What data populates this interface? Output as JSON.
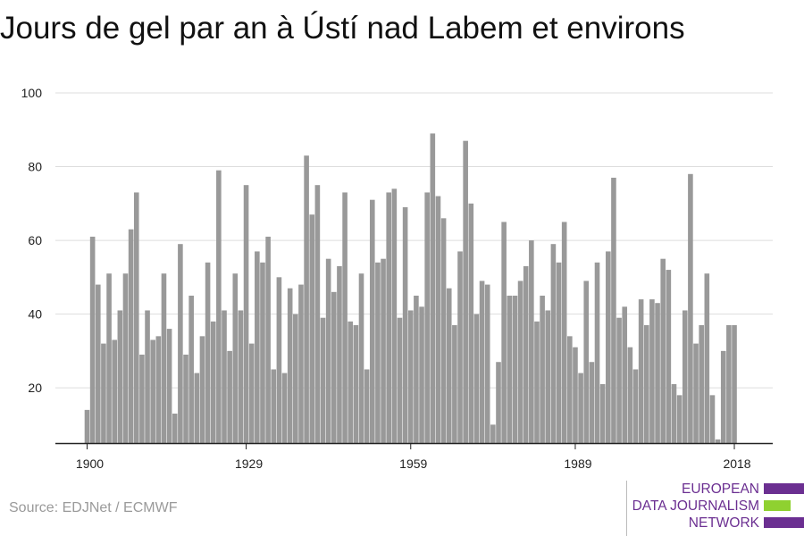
{
  "title": "Jours de gel par an à Ústí nad Labem et environs",
  "source": "Source: EDJNet / ECMWF",
  "logo": {
    "lines": [
      "EUROPEAN",
      "DATA JOURNALISM",
      "NETWORK"
    ],
    "colors": [
      "#6b2f91",
      "#8fd130",
      "#6b2f91"
    ]
  },
  "colors": {
    "bar": "#999999",
    "grid": "#dddddd",
    "axis": "#222222",
    "text": "#222222"
  },
  "chart_data": {
    "type": "bar",
    "title": "Jours de gel par an à Ústí nad Labem et environs",
    "xlabel": "",
    "ylabel": "",
    "x_ticks": [
      1900,
      1929,
      1959,
      1989,
      2018
    ],
    "y_ticks": [
      20,
      40,
      60,
      80,
      100
    ],
    "ylim": [
      5,
      100
    ],
    "grid": true,
    "categories": [
      1900,
      1901,
      1902,
      1903,
      1904,
      1905,
      1906,
      1907,
      1908,
      1909,
      1910,
      1911,
      1912,
      1913,
      1914,
      1915,
      1916,
      1917,
      1918,
      1919,
      1920,
      1921,
      1922,
      1923,
      1924,
      1925,
      1926,
      1927,
      1928,
      1929,
      1930,
      1931,
      1932,
      1933,
      1934,
      1935,
      1936,
      1937,
      1938,
      1939,
      1940,
      1941,
      1942,
      1943,
      1944,
      1945,
      1946,
      1947,
      1948,
      1949,
      1950,
      1951,
      1952,
      1953,
      1954,
      1955,
      1956,
      1957,
      1958,
      1959,
      1960,
      1961,
      1962,
      1963,
      1964,
      1965,
      1966,
      1967,
      1968,
      1969,
      1970,
      1971,
      1972,
      1973,
      1974,
      1975,
      1976,
      1977,
      1978,
      1979,
      1980,
      1981,
      1982,
      1983,
      1984,
      1985,
      1986,
      1987,
      1988,
      1989,
      1990,
      1991,
      1992,
      1993,
      1994,
      1995,
      1996,
      1997,
      1998,
      1999,
      2000,
      2001,
      2002,
      2003,
      2004,
      2005,
      2006,
      2007,
      2008,
      2009,
      2010,
      2011,
      2012,
      2013,
      2014,
      2015,
      2016,
      2017,
      2018
    ],
    "values": [
      14,
      61,
      48,
      32,
      51,
      33,
      41,
      51,
      63,
      73,
      29,
      41,
      33,
      34,
      51,
      36,
      13,
      59,
      29,
      45,
      24,
      34,
      54,
      38,
      79,
      41,
      30,
      51,
      41,
      75,
      32,
      57,
      54,
      61,
      25,
      50,
      24,
      47,
      40,
      48,
      83,
      67,
      75,
      39,
      55,
      46,
      53,
      73,
      38,
      37,
      51,
      25,
      71,
      54,
      55,
      73,
      74,
      39,
      69,
      41,
      45,
      42,
      73,
      89,
      72,
      66,
      47,
      37,
      57,
      87,
      70,
      40,
      49,
      48,
      10,
      27,
      65,
      45,
      45,
      49,
      53,
      60,
      38,
      45,
      41,
      59,
      54,
      65,
      34,
      31,
      24,
      49,
      27,
      54,
      21,
      57,
      77,
      39,
      42,
      31,
      25,
      44,
      37,
      44,
      43,
      55,
      52,
      21,
      18,
      41,
      78,
      32,
      37,
      51,
      18,
      6,
      30,
      37,
      37
    ]
  }
}
